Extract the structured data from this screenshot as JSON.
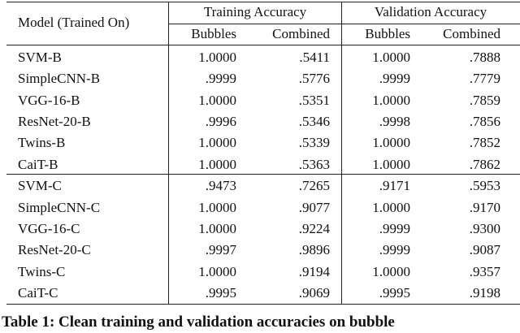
{
  "table": {
    "header": {
      "model": "Model (Trained On)",
      "groups": [
        {
          "title": "Training Accuracy",
          "columns": [
            "Bubbles",
            "Combined"
          ]
        },
        {
          "title": "Validation Accuracy",
          "columns": [
            "Bubbles",
            "Combined"
          ]
        }
      ]
    },
    "sections": [
      {
        "rows": [
          [
            "SVM-B",
            "1.0000",
            ".5411",
            "1.0000",
            ".7888"
          ],
          [
            "SimpleCNN-B",
            ".9999",
            ".5776",
            ".9999",
            ".7779"
          ],
          [
            "VGG-16-B",
            "1.0000",
            ".5351",
            "1.0000",
            ".7859"
          ],
          [
            "ResNet-20-B",
            ".9996",
            ".5346",
            ".9998",
            ".7856"
          ],
          [
            "Twins-B",
            "1.0000",
            ".5339",
            "1.0000",
            ".7852"
          ],
          [
            "CaiT-B",
            "1.0000",
            ".5363",
            "1.0000",
            ".7862"
          ]
        ]
      },
      {
        "rows": [
          [
            "SVM-C",
            ".9473",
            ".7265",
            ".9171",
            ".5953"
          ],
          [
            "SimpleCNN-C",
            "1.0000",
            ".9077",
            "1.0000",
            ".9170"
          ],
          [
            "VGG-16-C",
            "1.0000",
            ".9224",
            ".9999",
            ".9300"
          ],
          [
            "ResNet-20-C",
            ".9997",
            ".9896",
            ".9999",
            ".9087"
          ],
          [
            "Twins-C",
            "1.0000",
            ".9194",
            "1.0000",
            ".9357"
          ],
          [
            "CaiT-C",
            ".9995",
            ".9069",
            ".9995",
            ".9198"
          ]
        ]
      }
    ]
  },
  "caption": "Table 1: Clean training and validation accuracies on bubble"
}
